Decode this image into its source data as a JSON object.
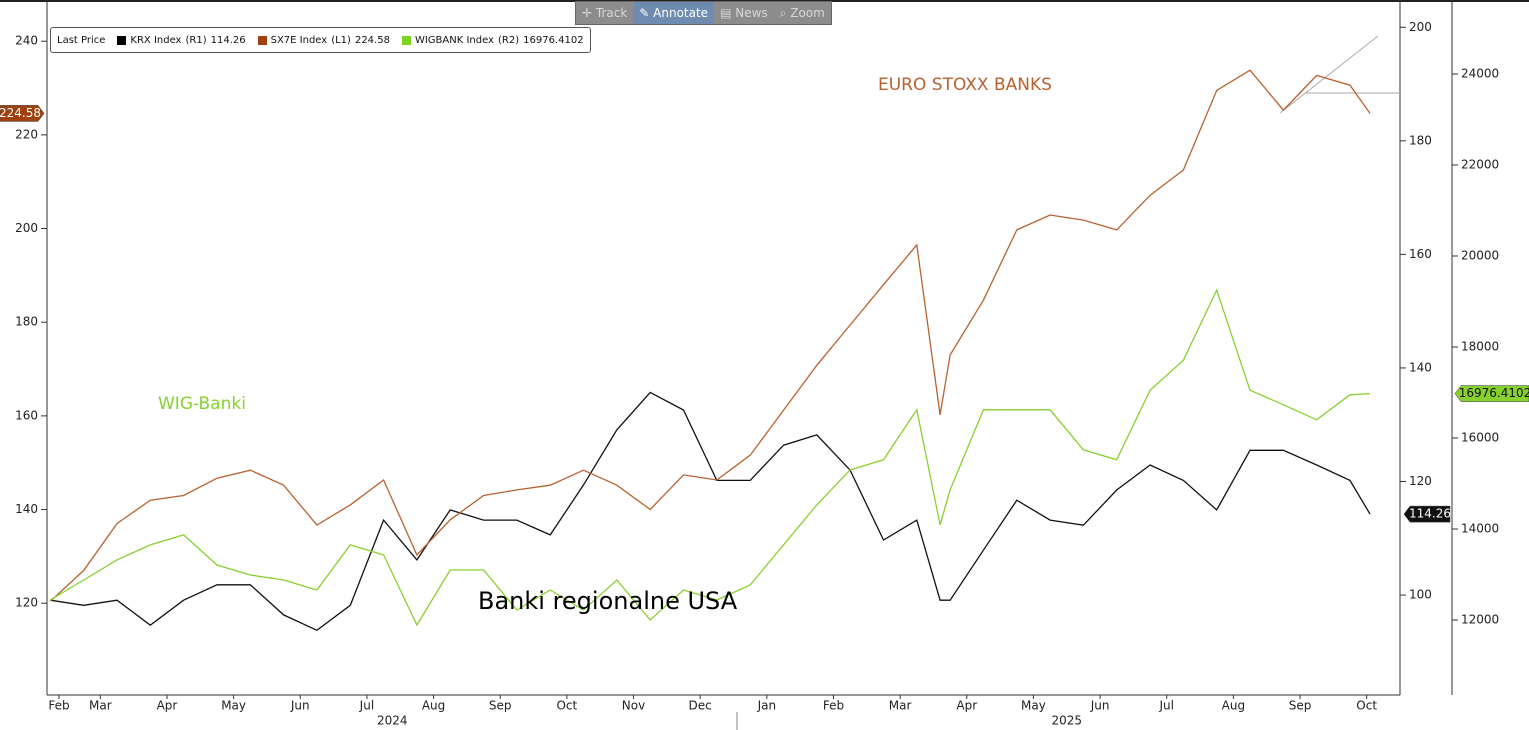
{
  "toolbar": {
    "buttons": [
      "Track",
      "Annotate",
      "News",
      "Zoom"
    ]
  },
  "chart_data": {
    "type": "line",
    "legend": "upper left",
    "legend_title": "Last Price",
    "annotations": [
      {
        "text": "EURO STOXX BANKS",
        "series": 1
      },
      {
        "text": "WIG-Banki",
        "series": 2
      },
      {
        "text": "Banki regionalne USA",
        "series": 0
      }
    ],
    "x": [
      0.75,
      1.25,
      1.75,
      2.25,
      2.75,
      3.25,
      3.75,
      4.25,
      4.75,
      5.25,
      5.75,
      6.25,
      6.75,
      7.25,
      7.75,
      8.25,
      8.75,
      9.25,
      9.75,
      10.25,
      10.75,
      11.25,
      11.75,
      12.25,
      12.75,
      13.25,
      13.75,
      14.1,
      14.25,
      14.75,
      15.25,
      15.75,
      16.25,
      16.75,
      17.25,
      17.75,
      18.25,
      18.75,
      19.25,
      19.75,
      20.25,
      20.55
    ],
    "xlim": [
      0.7,
      21
    ],
    "xticks": [
      {
        "value": 0.88,
        "label": "Feb"
      },
      {
        "value": 1.5,
        "label": "Mar"
      },
      {
        "value": 2.5,
        "label": "Apr"
      },
      {
        "value": 3.5,
        "label": "May"
      },
      {
        "value": 4.5,
        "label": "Jun"
      },
      {
        "value": 5.5,
        "label": "Jul"
      },
      {
        "value": 6.5,
        "label": "Aug"
      },
      {
        "value": 7.5,
        "label": "Sep"
      },
      {
        "value": 8.5,
        "label": "Oct"
      },
      {
        "value": 9.5,
        "label": "Nov"
      },
      {
        "value": 10.5,
        "label": "Dec"
      },
      {
        "value": 11.5,
        "label": "Jan"
      },
      {
        "value": 12.5,
        "label": "Feb"
      },
      {
        "value": 13.5,
        "label": "Mar"
      },
      {
        "value": 14.5,
        "label": "Apr"
      },
      {
        "value": 15.5,
        "label": "May"
      },
      {
        "value": 16.5,
        "label": "Jun"
      },
      {
        "value": 17.5,
        "label": "Jul"
      },
      {
        "value": 18.5,
        "label": "Aug"
      },
      {
        "value": 19.5,
        "label": "Sep"
      },
      {
        "value": 20.5,
        "label": "Oct"
      }
    ],
    "year_labels": [
      {
        "value": 5.88,
        "label": "2024"
      },
      {
        "value": 16.0,
        "label": "2025"
      }
    ],
    "ylim": [
      100.4,
      248.8
    ],
    "yticks": [
      120,
      140,
      160,
      180,
      200,
      220,
      240
    ],
    "y2lim": [
      82.4,
      204.8
    ],
    "y2ticks": [
      100,
      120,
      140,
      160,
      180,
      200
    ],
    "y3lim": [
      10352,
      25626
    ],
    "y3ticks": [
      12000,
      14000,
      16000,
      18000,
      20000,
      22000,
      24000
    ],
    "series": [
      {
        "name": "KRX Index",
        "axis_label": "(R1)",
        "axis": "y2",
        "color": "#111111",
        "values": [
          99.1,
          98.2,
          99.1,
          94.7,
          99.1,
          101.8,
          101.8,
          96.5,
          93.8,
          98.2,
          113.2,
          106.2,
          115,
          113.2,
          113.2,
          110.6,
          119.4,
          129.1,
          135.7,
          132.6,
          120.2,
          120.2,
          126.4,
          128.2,
          122,
          109.7,
          113.2,
          99.1,
          99.1,
          107.9,
          116.7,
          113.2,
          112.3,
          118.5,
          122.9,
          120.2,
          115,
          125.5,
          125.5,
          122.9,
          120.2,
          114.26
        ]
      },
      {
        "name": "SX7E Index",
        "axis_label": "(L1)",
        "axis": "y",
        "color": "#b8612f",
        "values": [
          120.4,
          127,
          137,
          142,
          143,
          146.7,
          148.4,
          145.2,
          136.7,
          141,
          146.3,
          130.3,
          137.8,
          143,
          144.2,
          145.2,
          148.4,
          145.2,
          140,
          147.4,
          146.3,
          151.6,
          161.2,
          170.8,
          179.4,
          188,
          196.5,
          160.2,
          173,
          184.7,
          199.7,
          202.9,
          201.8,
          199.7,
          207.1,
          212.5,
          229.5,
          233.8,
          225.3,
          232.7,
          230.6,
          224.58
        ]
      },
      {
        "name": "WIGBANK Index",
        "axis_label": "(R2)",
        "axis": "y3",
        "color": "#86d12e",
        "values": [
          12440,
          12880,
          13320,
          13650,
          13870,
          13210,
          12990,
          12880,
          12660,
          13650,
          13430,
          11890,
          13100,
          13100,
          12220,
          12660,
          12220,
          12880,
          12000,
          12660,
          12440,
          12770,
          13650,
          14530,
          15300,
          15520,
          16620,
          14090,
          14860,
          16620,
          16620,
          16620,
          15740,
          15520,
          17050,
          17710,
          19250,
          17050,
          16730,
          16400,
          16950,
          16976.4102
        ]
      }
    ]
  }
}
